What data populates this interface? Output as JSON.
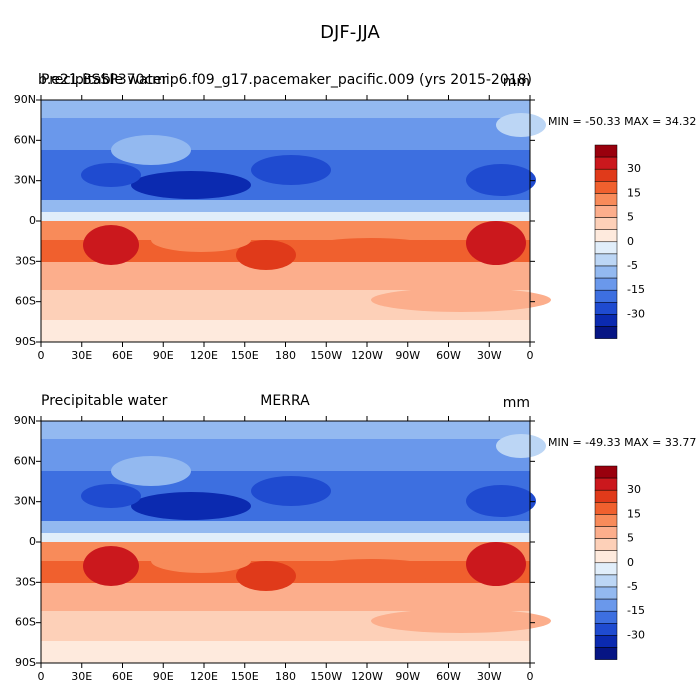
{
  "title": "DJF-JJA",
  "panels": [
    {
      "left_string": "Precipitable water",
      "center_string": "b.e21.BSSP370cmip6.f09_g17.pacemaker_pacific.009 (yrs 2015-2018)",
      "units": "mm",
      "stats": "MIN = -50.33 MAX =  34.32",
      "lat_labels": [
        "90N",
        "60N",
        "30N",
        "0",
        "30S",
        "60S",
        "90S"
      ],
      "lon_labels": [
        "0",
        "30E",
        "60E",
        "90E",
        "120E",
        "150E",
        "180",
        "150W",
        "120W",
        "90W",
        "60W",
        "30W",
        "0"
      ],
      "colorbar": {
        "labels": [
          30,
          15,
          5,
          0,
          -5,
          -15,
          -30
        ],
        "colors": [
          "#99000d",
          "#cb181d",
          "#e03a1a",
          "#f0602e",
          "#f88b5a",
          "#fcae8c",
          "#fdd0b8",
          "#feeadd",
          "#e1eefa",
          "#bcd6f5",
          "#93b9f0",
          "#6a98eb",
          "#3d6fe0",
          "#1f4bd0",
          "#0b2ab0",
          "#061584"
        ]
      }
    },
    {
      "left_string": "Precipitable water",
      "center_string": "MERRA",
      "units": "mm",
      "stats": "MIN = -49.33 MAX =  33.77",
      "lat_labels": [
        "90N",
        "60N",
        "30N",
        "0",
        "30S",
        "60S",
        "90S"
      ],
      "lon_labels": [
        "0",
        "30E",
        "60E",
        "90E",
        "120E",
        "150E",
        "180",
        "150W",
        "120W",
        "90W",
        "60W",
        "30W",
        "0"
      ],
      "colorbar": {
        "labels": [
          30,
          15,
          5,
          0,
          -5,
          -15,
          -30
        ],
        "colors": [
          "#99000d",
          "#cb181d",
          "#e03a1a",
          "#f0602e",
          "#f88b5a",
          "#fcae8c",
          "#fdd0b8",
          "#feeadd",
          "#e1eefa",
          "#bcd6f5",
          "#93b9f0",
          "#6a98eb",
          "#3d6fe0",
          "#1f4bd0",
          "#0b2ab0",
          "#061584"
        ]
      }
    }
  ]
}
